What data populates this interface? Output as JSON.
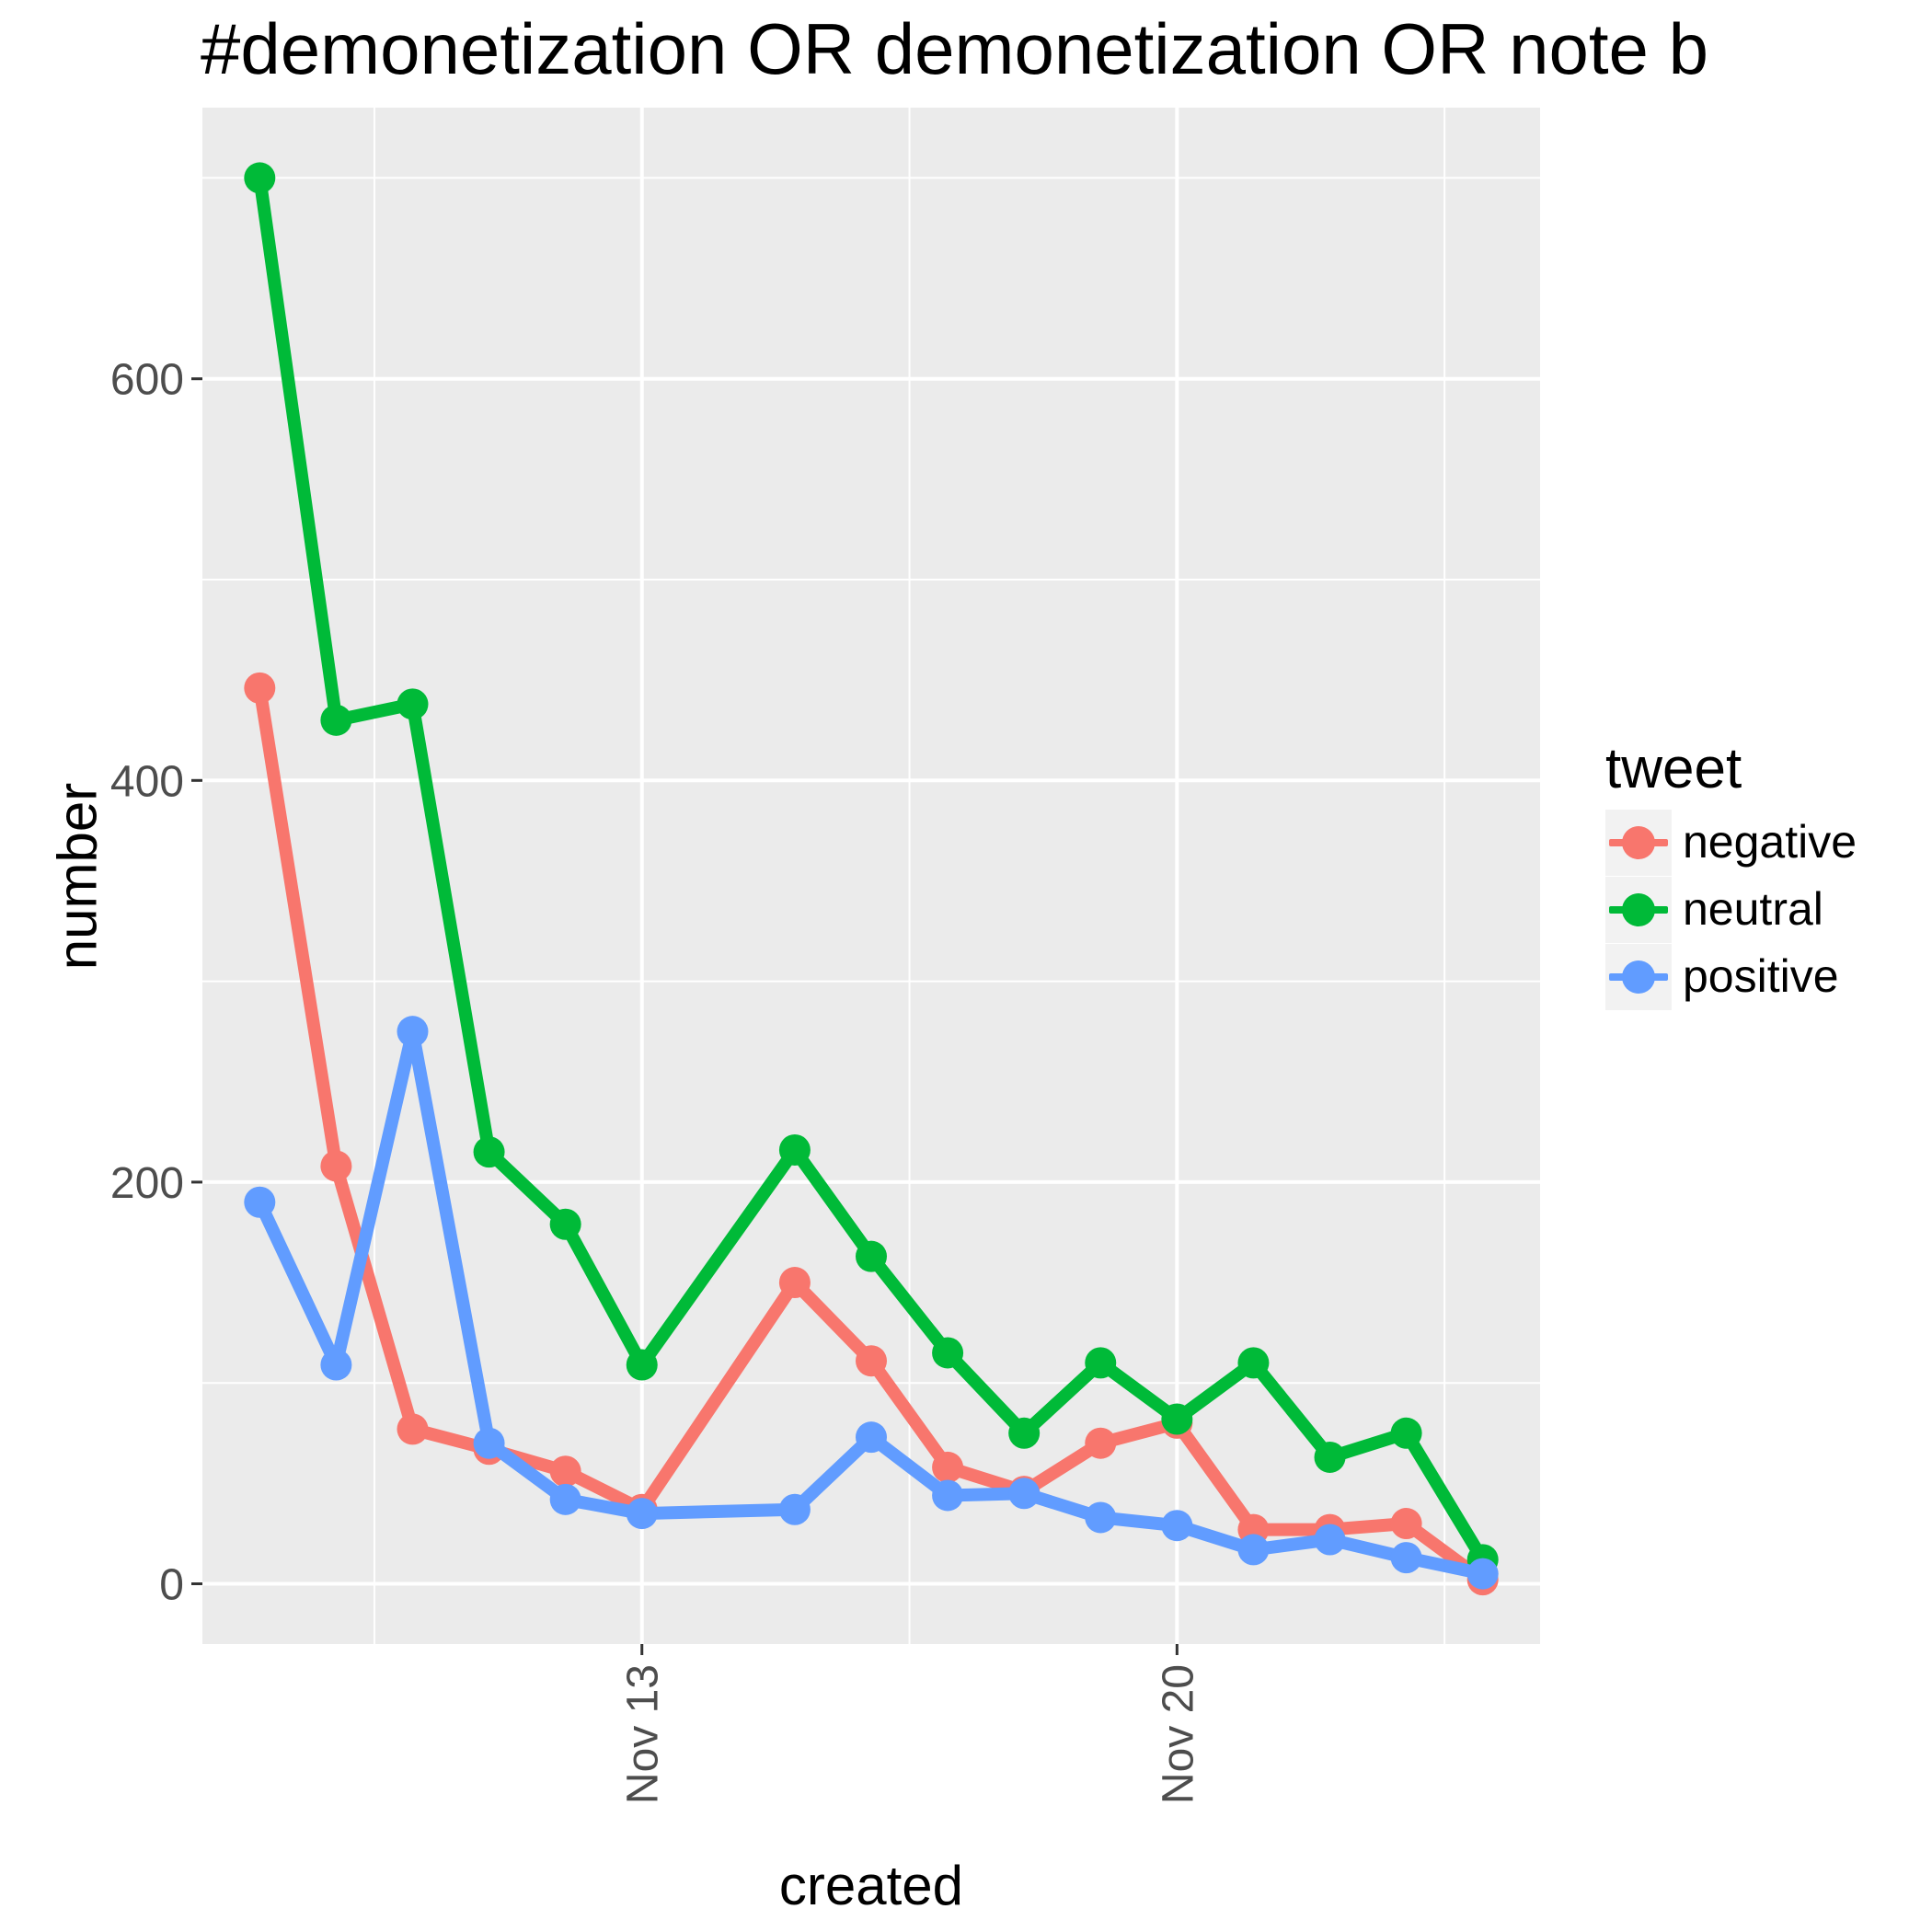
{
  "title": "#demonetization OR demonetization OR note b",
  "chart_data": {
    "type": "line",
    "xlabel": "created",
    "ylabel": "number",
    "x": [
      "2016-11-08",
      "2016-11-09",
      "2016-11-10",
      "2016-11-11",
      "2016-11-12",
      "2016-11-13",
      "2016-11-15",
      "2016-11-16",
      "2016-11-17",
      "2016-11-18",
      "2016-11-19",
      "2016-11-20",
      "2016-11-21",
      "2016-11-22",
      "2016-11-23",
      "2016-11-24"
    ],
    "x_ticks": [
      {
        "date": "2016-11-13",
        "label": "Nov 13"
      },
      {
        "date": "2016-11-20",
        "label": "Nov 20"
      }
    ],
    "xlim": [
      "2016-11-07T06:00",
      "2016-11-24T18:00"
    ],
    "y_ticks": [
      0,
      200,
      400,
      600
    ],
    "ylim": [
      -30,
      735
    ],
    "grid": true,
    "legend_title": "tweet",
    "legend_position": "right",
    "series": [
      {
        "name": "negative",
        "color": "#F8766D",
        "values": [
          446,
          208,
          77,
          67,
          56,
          37,
          150,
          111,
          58,
          46,
          70,
          80,
          27,
          27,
          30,
          2
        ]
      },
      {
        "name": "neutral",
        "color": "#00BA38",
        "values": [
          700,
          430,
          438,
          215,
          179,
          109,
          216,
          163,
          115,
          75,
          110,
          82,
          110,
          63,
          75,
          12
        ]
      },
      {
        "name": "positive",
        "color": "#619CFF",
        "values": [
          190,
          109,
          275,
          70,
          42,
          35,
          37,
          73,
          44,
          45,
          33,
          29,
          17,
          22,
          13,
          5
        ]
      }
    ]
  }
}
